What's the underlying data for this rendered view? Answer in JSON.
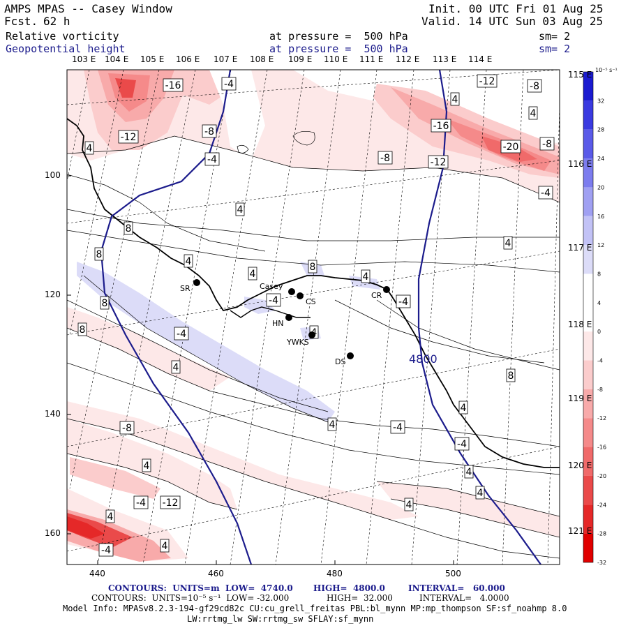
{
  "header": {
    "title": "AMPS MPAS -- Casey Window",
    "fcst_label": "Fcst.",
    "fcst_value": "62 h",
    "init": "Init. 00 UTC Fri 01 Aug 25",
    "valid": "Valid. 14 UTC Sun 03 Aug 25",
    "field1": "Relative vorticity",
    "field2": "Geopotential height",
    "level1": "at pressure =  500 hPa",
    "level2": "at pressure =  500 hPa",
    "sm1": "sm= 2",
    "sm2": "sm= 2"
  },
  "top_lon_labels": [
    "103 E",
    "104 E",
    "105 E",
    "106 E",
    "107 E",
    "108 E",
    "109 E",
    "110 E",
    "111 E",
    "112 E",
    "113 E",
    "114 E"
  ],
  "right_lon_labels": [
    "115 E",
    "116 E",
    "117 E",
    "118 E",
    "119 E",
    "120 E",
    "121 E"
  ],
  "left_axis": [
    "100",
    "120",
    "140",
    "160"
  ],
  "bottom_axis": [
    "440",
    "460",
    "480",
    "500"
  ],
  "stations": [
    {
      "name": "SR"
    },
    {
      "name": "Casey"
    },
    {
      "name": "CS"
    },
    {
      "name": "HN"
    },
    {
      "name": "YWKS"
    },
    {
      "name": "DS"
    },
    {
      "name": "CR"
    }
  ],
  "height_contour_label": "4800",
  "vort_labels": [
    "-16",
    "-4",
    "-12",
    "-8",
    "-4",
    "-16",
    "-20",
    "-8",
    "-12",
    "-8",
    "-4",
    "-12",
    "-8",
    "4",
    "4",
    "4",
    "8",
    "8",
    "4",
    "8",
    "4",
    "4",
    "-4",
    "-4",
    "8",
    "8",
    "-4",
    "4",
    "4",
    "8",
    "4",
    "4",
    "-4",
    "-8",
    "4",
    "-4",
    "4",
    "-12",
    "-4",
    "4",
    "4",
    "4",
    "-4",
    "4",
    "4",
    "4"
  ],
  "colorbar": {
    "unit": "10⁻⁵ s⁻¹",
    "ticks": [
      "32",
      "28",
      "24",
      "20",
      "16",
      "12",
      "8",
      "4",
      "0",
      "-4",
      "-8",
      "-12",
      "-16",
      "-20",
      "-24",
      "-28",
      "-32"
    ],
    "colors": [
      "#1b1bd0",
      "#3a3ae0",
      "#5a5ae8",
      "#7c7cee",
      "#a0a0f2",
      "#c2c2f6",
      "#dcdcf8",
      "#ffffff",
      "#ffffff",
      "#fde8e8",
      "#fbcccc",
      "#f8aaaa",
      "#f58a8a",
      "#f06a6a",
      "#ea4a4a",
      "#e52828",
      "#e00000"
    ]
  },
  "footer": {
    "line1_a": "CONTOURS:  UNITS=m  LOW=  4740.0",
    "line1_b": "HIGH=  4800.0",
    "line1_c": "INTERVAL=   60.000",
    "line2_a": "CONTOURS:  UNITS=10⁻⁵ s⁻¹  LOW= -32.000",
    "line2_b": "HIGH=  32.000",
    "line2_c": "INTERVAL=   4.0000",
    "line3": "Model Info: MPASv8.2.3-194-gf29cd82c CU:cu_grell_freitas PBL:bl_mynn MP:mp_thompson SF:sf_noahmp 8.0",
    "line4": "LW:rrtmg_lw SW:rrtmg_sw SFLAY:sf_mynn"
  }
}
